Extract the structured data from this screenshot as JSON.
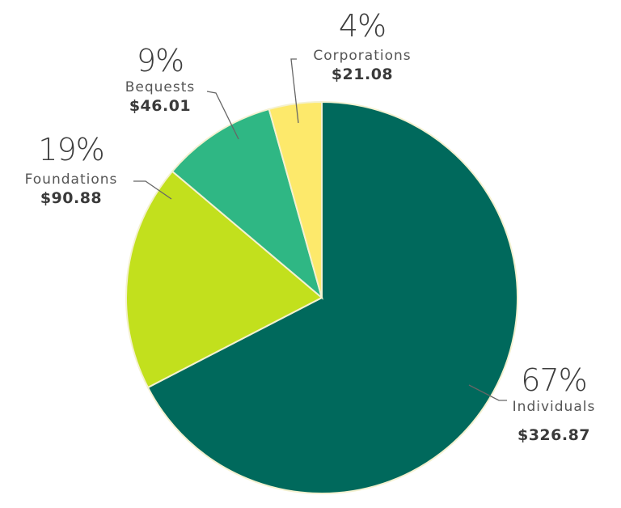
{
  "chart_data": {
    "type": "pie",
    "title": "",
    "categories": [
      "Individuals",
      "Foundations",
      "Bequests",
      "Corporations"
    ],
    "values": [
      326.87,
      90.88,
      46.01,
      21.08
    ],
    "percentages": [
      "67%",
      "19%",
      "9%",
      "4%"
    ],
    "amount_labels": [
      "$326.87",
      "$90.88",
      "$46.01",
      "$21.08"
    ],
    "colors": [
      "#00695c",
      "#c2e01d",
      "#2fb784",
      "#fde96b"
    ],
    "start_angle_deg": 0,
    "direction": "clockwise"
  },
  "labels": {
    "individuals": {
      "pct": "67%",
      "name": "Individuals",
      "amount": "$326.87"
    },
    "foundations": {
      "pct": "19%",
      "name": "Foundations",
      "amount": "$90.88"
    },
    "bequests": {
      "pct": "9%",
      "name": "Bequests",
      "amount": "$46.01"
    },
    "corporations": {
      "pct": "4%",
      "name": "Corporations",
      "amount": "$21.08"
    }
  }
}
